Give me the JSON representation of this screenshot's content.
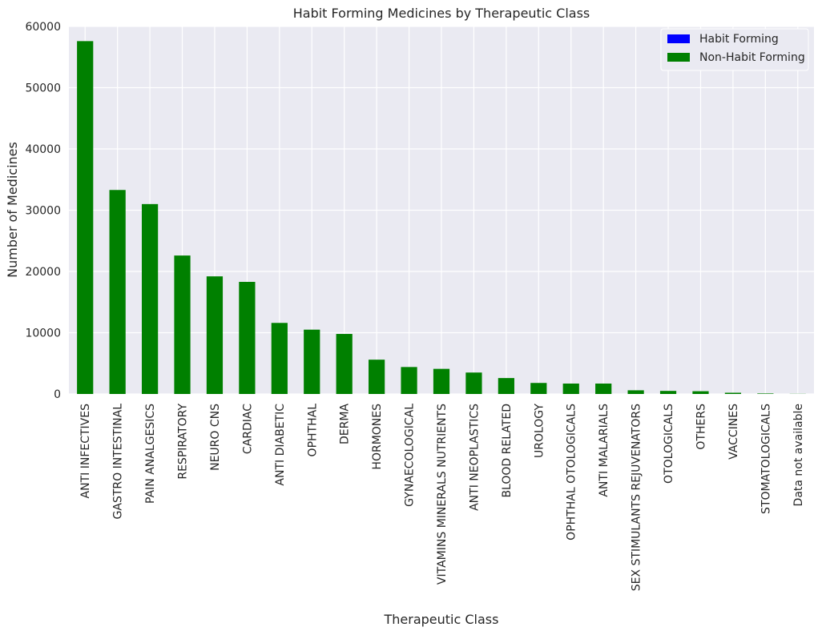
{
  "chart_data": {
    "type": "bar",
    "stacked": true,
    "title": "Habit Forming Medicines by Therapeutic Class",
    "xlabel": "Therapeutic Class",
    "ylabel": "Number of Medicines",
    "ylim": [
      0,
      60000
    ],
    "yticks": [
      0,
      10000,
      20000,
      30000,
      40000,
      50000,
      60000
    ],
    "grid": true,
    "legend_position": "top-right",
    "categories": [
      "ANTI INFECTIVES",
      "GASTRO INTESTINAL",
      "PAIN ANALGESICS",
      "RESPIRATORY",
      "NEURO CNS",
      "CARDIAC",
      "ANTI DIABETIC",
      "OPHTHAL",
      "DERMA",
      "HORMONES",
      "GYNAECOLOGICAL",
      "VITAMINS MINERALS NUTRIENTS",
      "ANTI NEOPLASTICS",
      "BLOOD RELATED",
      "UROLOGY",
      "OPHTHAL OTOLOGICALS",
      "ANTI MALARIALS",
      "SEX STIMULANTS REJUVENATORS",
      "OTOLOGICALS",
      "OTHERS",
      "VACCINES",
      "STOMATOLOGICALS",
      "Data not available"
    ],
    "series": [
      {
        "name": "Habit Forming",
        "color": "#0000ff",
        "values": [
          0,
          0,
          0,
          0,
          0,
          0,
          0,
          0,
          0,
          0,
          0,
          0,
          0,
          0,
          0,
          0,
          0,
          0,
          0,
          0,
          0,
          0,
          0
        ]
      },
      {
        "name": "Non-Habit Forming",
        "color": "#008000",
        "values": [
          57600,
          33300,
          31000,
          22600,
          19200,
          18300,
          11600,
          10500,
          9800,
          5600,
          4400,
          4100,
          3500,
          2600,
          1800,
          1700,
          1700,
          600,
          500,
          450,
          200,
          80,
          20
        ]
      }
    ],
    "colors": {
      "plot_background": "#eaeaf2",
      "grid": "#ffffff"
    }
  }
}
